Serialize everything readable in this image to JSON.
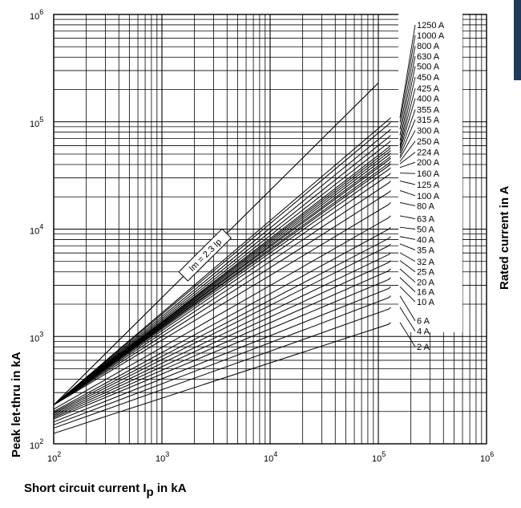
{
  "chart_data": {
    "type": "line",
    "title": "",
    "xlabel": "Short circuit current I",
    "xlabel_sub": "p",
    "xlabel_suffix": " in kA",
    "ylabel": "Peak let-thru in kA",
    "right_label": "Rated current in A",
    "x_scale": "log",
    "y_scale": "log",
    "xlim": [
      100,
      1000000
    ],
    "ylim": [
      100,
      1000000
    ],
    "x_ticks": [
      {
        "base": "10",
        "exp": "2"
      },
      {
        "base": "10",
        "exp": "3"
      },
      {
        "base": "10",
        "exp": "4"
      },
      {
        "base": "10",
        "exp": "5"
      },
      {
        "base": "10",
        "exp": "6"
      }
    ],
    "y_ticks": [
      {
        "base": "10",
        "exp": "2"
      },
      {
        "base": "10",
        "exp": "3"
      },
      {
        "base": "10",
        "exp": "4"
      },
      {
        "base": "10",
        "exp": "5"
      },
      {
        "base": "10",
        "exp": "6"
      }
    ],
    "grid": true,
    "annotation": "Im = 2.3 Ip",
    "limit_line": {
      "x": [
        100,
        100000
      ],
      "y": [
        230,
        230000
      ]
    },
    "series": [
      {
        "name": "1250 A",
        "y_at_100": 230,
        "y_at_end": 105000,
        "label_y": 800000
      },
      {
        "name": "1000 A",
        "y_at_100": 230,
        "y_at_end": 95000,
        "label_y": 640000
      },
      {
        "name": "800 A",
        "y_at_100": 230,
        "y_at_end": 82000,
        "label_y": 510000
      },
      {
        "name": "630 A",
        "y_at_100": 230,
        "y_at_end": 72000,
        "label_y": 410000
      },
      {
        "name": "500 A",
        "y_at_100": 230,
        "y_at_end": 64000,
        "label_y": 330000
      },
      {
        "name": "450 A",
        "y_at_100": 230,
        "y_at_end": 58000,
        "label_y": 262000
      },
      {
        "name": "425 A",
        "y_at_100": 230,
        "y_at_end": 55000,
        "label_y": 205000
      },
      {
        "name": "400 A",
        "y_at_100": 230,
        "y_at_end": 52000,
        "label_y": 165000
      },
      {
        "name": "355 A",
        "y_at_100": 230,
        "y_at_end": 49000,
        "label_y": 130000
      },
      {
        "name": "315 A",
        "y_at_100": 230,
        "y_at_end": 46000,
        "label_y": 105000
      },
      {
        "name": "300 A",
        "y_at_100": 230,
        "y_at_end": 44000,
        "label_y": 83000
      },
      {
        "name": "250 A",
        "y_at_100": 230,
        "y_at_end": 41000,
        "label_y": 66000
      },
      {
        "name": "224 A",
        "y_at_100": 230,
        "y_at_end": 39000,
        "label_y": 52000
      },
      {
        "name": "200 A",
        "y_at_100": 230,
        "y_at_end": 36000,
        "label_y": 42000
      },
      {
        "name": "160 A",
        "y_at_100": 230,
        "y_at_end": 32000,
        "label_y": 33000
      },
      {
        "name": "125 A",
        "y_at_100": 230,
        "y_at_end": 27000,
        "label_y": 26000
      },
      {
        "name": "100 A",
        "y_at_100": 230,
        "y_at_end": 22000,
        "label_y": 20500
      },
      {
        "name": "80 A",
        "y_at_100": 230,
        "y_at_end": 17000,
        "label_y": 16500
      },
      {
        "name": "63 A",
        "y_at_100": 210,
        "y_at_end": 12800,
        "label_y": 12500
      },
      {
        "name": "50 A",
        "y_at_100": 200,
        "y_at_end": 10000,
        "label_y": 10000
      },
      {
        "name": "40 A",
        "y_at_100": 195,
        "y_at_end": 8200,
        "label_y": 8000
      },
      {
        "name": "35 A",
        "y_at_100": 190,
        "y_at_end": 7000,
        "label_y": 6400
      },
      {
        "name": "32 A",
        "y_at_100": 185,
        "y_at_end": 5800,
        "label_y": 5000
      },
      {
        "name": "25 A",
        "y_at_100": 180,
        "y_at_end": 4900,
        "label_y": 4000
      },
      {
        "name": "20 A",
        "y_at_100": 175,
        "y_at_end": 4100,
        "label_y": 3200
      },
      {
        "name": "16 A",
        "y_at_100": 170,
        "y_at_end": 3400,
        "label_y": 2600
      },
      {
        "name": "10 A",
        "y_at_100": 160,
        "y_at_end": 2800,
        "label_y": 2100
      },
      {
        "name": "6 A",
        "y_at_100": 150,
        "y_at_end": 2300,
        "label_y": 1400
      },
      {
        "name": "4 A",
        "y_at_100": 140,
        "y_at_end": 1800,
        "label_y": 1120
      },
      {
        "name": "2 A",
        "y_at_100": 125,
        "y_at_end": 1300,
        "label_y": 800
      }
    ]
  },
  "colors": {
    "line": "#000000",
    "grid": "#000000",
    "background": "#ffffff",
    "corner_tab": "#1f3b57"
  }
}
